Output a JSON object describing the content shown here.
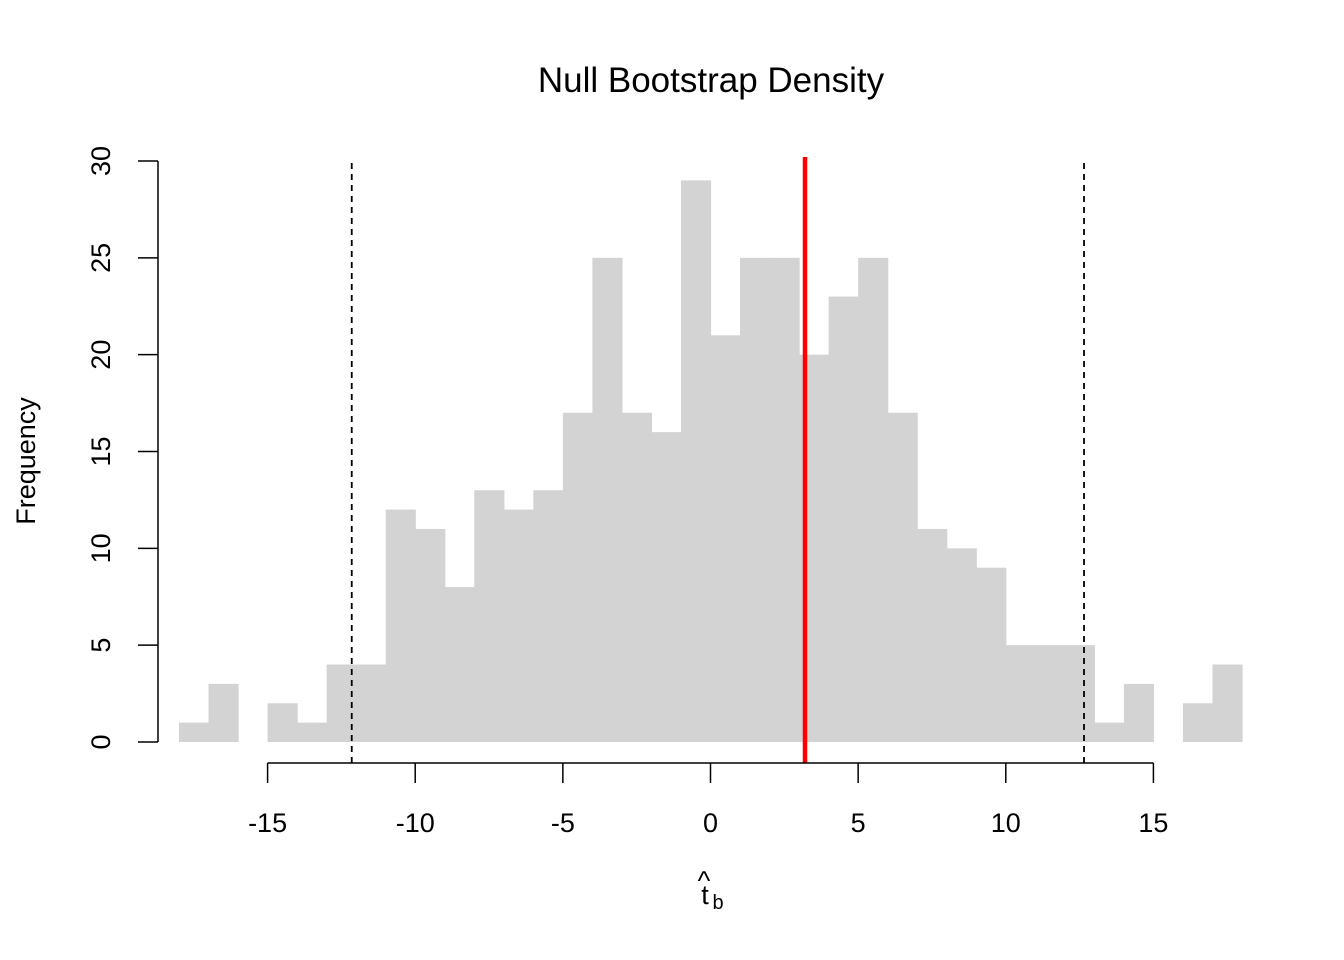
{
  "chart_data": {
    "type": "bar",
    "title": "Null Bootstrap Density",
    "xlabel_main": "t",
    "xlabel_hat": "^",
    "xlabel_sub": "b",
    "ylabel": "Frequency",
    "bin_width": 1,
    "bin_starts": [
      -18,
      -17,
      -16,
      -15,
      -14,
      -13,
      -12,
      -11,
      -10,
      -9,
      -8,
      -7,
      -6,
      -5,
      -4,
      -3,
      -2,
      -1,
      0,
      1,
      2,
      3,
      4,
      5,
      6,
      7,
      8,
      9,
      10,
      11,
      12,
      13,
      14,
      15,
      16,
      17
    ],
    "values": [
      1,
      3,
      0,
      2,
      1,
      4,
      4,
      12,
      11,
      8,
      13,
      12,
      13,
      17,
      25,
      17,
      16,
      29,
      21,
      25,
      25,
      20,
      23,
      25,
      17,
      11,
      10,
      9,
      5,
      5,
      5,
      1,
      3,
      0,
      2,
      4
    ],
    "xlim": [
      -18,
      18
    ],
    "ylim": [
      0,
      30
    ],
    "x_ticks": [
      -15,
      -10,
      -5,
      0,
      5,
      10,
      15
    ],
    "x_tick_labels": [
      "-15",
      "-10",
      "-5",
      "0",
      "5",
      "10",
      "15"
    ],
    "y_ticks": [
      0,
      5,
      10,
      15,
      20,
      25,
      30
    ],
    "y_tick_labels": [
      "0",
      "5",
      "10",
      "15",
      "20",
      "25",
      "30"
    ],
    "observed_line": {
      "x": 3.2,
      "color": "#ff0000"
    },
    "quantile_lines": [
      {
        "x": -12.15
      },
      {
        "x": 12.65
      }
    ],
    "bar_color": "#d3d3d3",
    "grid": false
  }
}
